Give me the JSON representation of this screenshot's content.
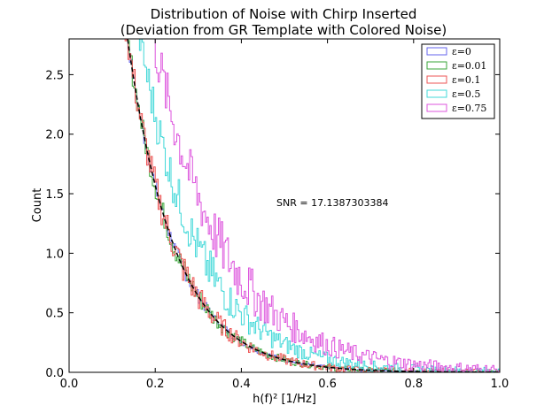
{
  "chart_data": {
    "type": "histogram",
    "title_line1": "Distribution of Noise with Chirp Inserted",
    "title_line2": "(Deviation from GR Template with Colored Noise)",
    "xlabel": "h(f)² [1/Hz]",
    "ylabel": "Count",
    "xlim": [
      0.0,
      1.0
    ],
    "ylim": [
      0.0,
      2.8
    ],
    "x_ticks": [
      "0.0",
      "0.2",
      "0.4",
      "0.6",
      "0.8",
      "1.0"
    ],
    "y_ticks": [
      "0.0",
      "0.5",
      "1.0",
      "1.5",
      "2.0",
      "2.5"
    ],
    "annotation": "SNR = 17.1387303384",
    "legend_position": "upper right",
    "grid": false,
    "series": [
      {
        "name": "ε=0",
        "color": "#6666ee",
        "decay": 1.0
      },
      {
        "name": "ε=0.01",
        "color": "#3aa63a",
        "decay": 1.0
      },
      {
        "name": "ε=0.1",
        "color": "#ee5555",
        "decay": 1.0
      },
      {
        "name": "ε=0.5",
        "color": "#40d8d8",
        "decay": 1.22
      },
      {
        "name": "ε=0.75",
        "color": "#dd55dd",
        "decay": 1.45
      }
    ],
    "reference_curve_color": "#000000"
  }
}
